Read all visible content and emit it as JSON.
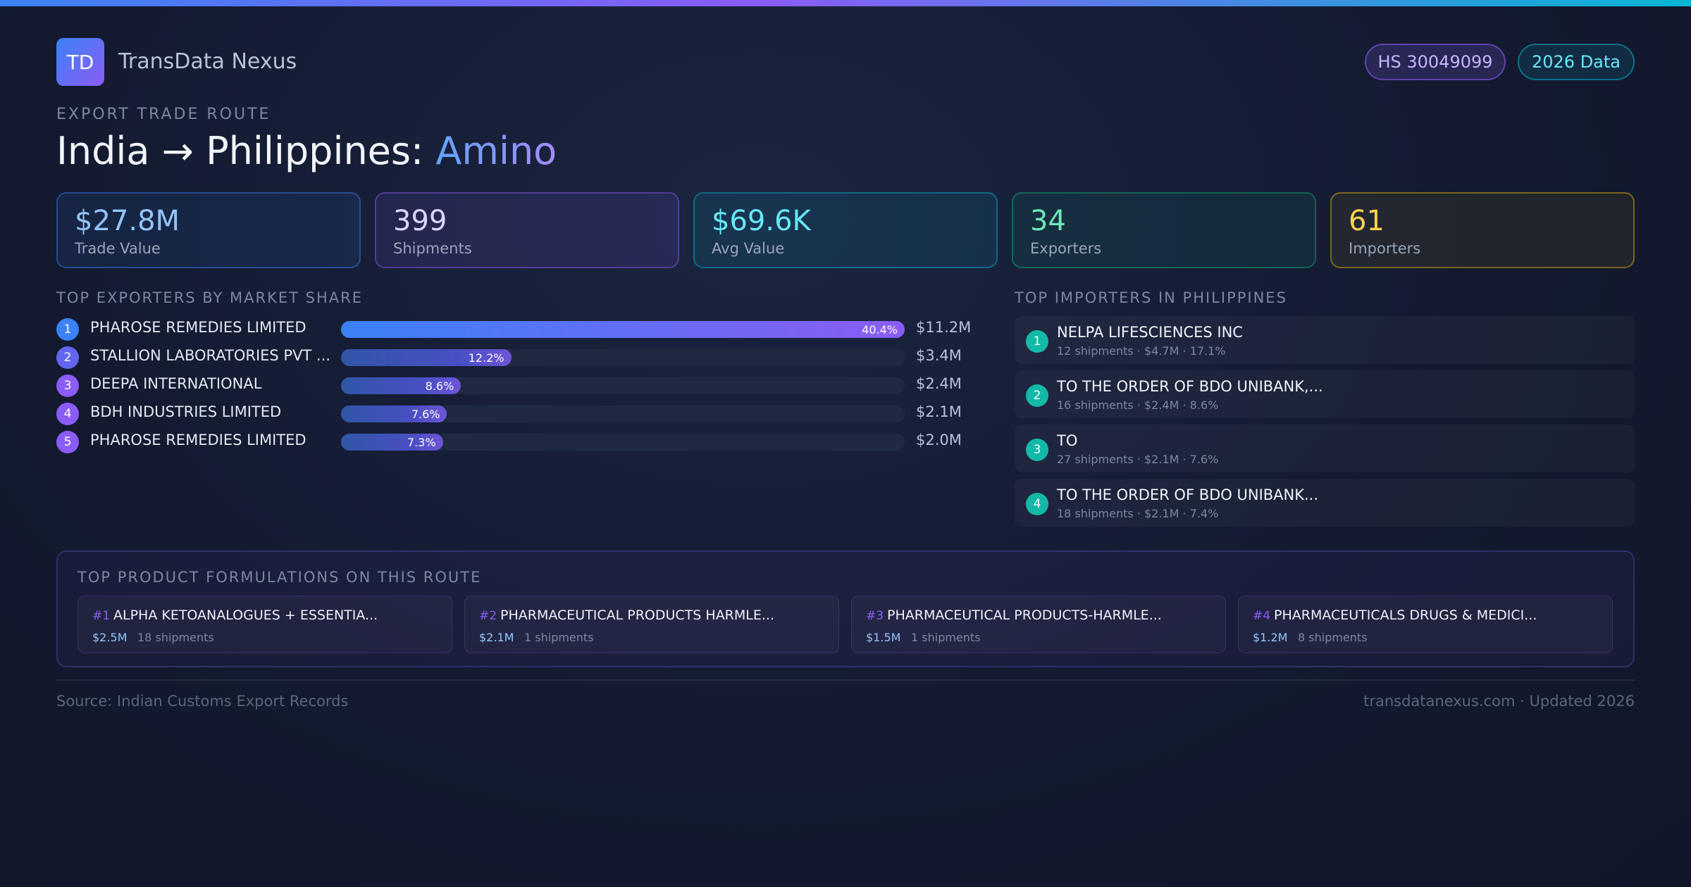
{
  "brand": {
    "logo_initials": "TD",
    "name": "TransData Nexus"
  },
  "badges": {
    "hs_code": "HS 30049099",
    "data_year": "2026 Data"
  },
  "route": {
    "eyebrow": "EXPORT TRADE ROUTE",
    "title_main": "India → Philippines:",
    "title_accent": "Amino"
  },
  "stats": [
    {
      "value": "$27.8M",
      "label": "Trade Value"
    },
    {
      "value": "399",
      "label": "Shipments"
    },
    {
      "value": "$69.6K",
      "label": "Avg Value"
    },
    {
      "value": "34",
      "label": "Exporters"
    },
    {
      "value": "61",
      "label": "Importers"
    }
  ],
  "exporters": {
    "heading": "TOP EXPORTERS BY MARKET SHARE",
    "items": [
      {
        "rank": "1",
        "name": "PHAROSE REMEDIES LIMITED",
        "share": 40.4,
        "share_label": "40.4%",
        "value": "$11.2M"
      },
      {
        "rank": "2",
        "name": "STALLION LABORATORIES PVT ...",
        "share": 12.2,
        "share_label": "12.2%",
        "value": "$3.4M"
      },
      {
        "rank": "3",
        "name": "DEEPA INTERNATIONAL",
        "share": 8.6,
        "share_label": "8.6%",
        "value": "$2.4M"
      },
      {
        "rank": "4",
        "name": "BDH INDUSTRIES LIMITED",
        "share": 7.6,
        "share_label": "7.6%",
        "value": "$2.1M"
      },
      {
        "rank": "5",
        "name": "PHAROSE REMEDIES LIMITED",
        "share": 7.3,
        "share_label": "7.3%",
        "value": "$2.0M"
      }
    ]
  },
  "importers": {
    "heading": "TOP IMPORTERS IN PHILIPPINES",
    "items": [
      {
        "rank": "1",
        "name": "NELPA LIFESCIENCES INC",
        "meta": "12 shipments · $4.7M · 17.1%"
      },
      {
        "rank": "2",
        "name": "TO THE ORDER OF BDO UNIBANK,...",
        "meta": "16 shipments · $2.4M · 8.6%"
      },
      {
        "rank": "3",
        "name": "TO",
        "meta": "27 shipments · $2.1M · 7.6%"
      },
      {
        "rank": "4",
        "name": "TO THE ORDER OF BDO UNIBANK...",
        "meta": "18 shipments · $2.1M · 7.4%"
      }
    ]
  },
  "products": {
    "heading": "TOP PRODUCT FORMULATIONS ON THIS ROUTE",
    "items": [
      {
        "num": "#1",
        "name": "ALPHA KETOANALOGUES + ESSENTIA...",
        "value": "$2.5M",
        "shipments": "18 shipments"
      },
      {
        "num": "#2",
        "name": "PHARMACEUTICAL PRODUCTS HARMLE...",
        "value": "$2.1M",
        "shipments": "1 shipments"
      },
      {
        "num": "#3",
        "name": "PHARMACEUTICAL PRODUCTS-HARMLE...",
        "value": "$1.5M",
        "shipments": "1 shipments"
      },
      {
        "num": "#4",
        "name": "PHARMACEUTICALS DRUGS & MEDICI...",
        "value": "$1.2M",
        "shipments": "8 shipments"
      }
    ]
  },
  "footer": {
    "source": "Source: Indian Customs Export Records",
    "site": "transdatanexus.com · Updated 2026"
  },
  "colors": {
    "accent_blue": "#3b82f6",
    "accent_purple": "#8b5cf6",
    "accent_cyan": "#06b6d4",
    "importer_rank": "#14b8a6",
    "exporter_rank": [
      "#3b82f6",
      "#6366f1",
      "#8b5cf6",
      "#8b5cf6",
      "#8b5cf6"
    ]
  }
}
